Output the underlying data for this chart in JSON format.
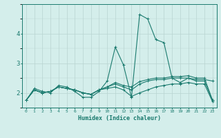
{
  "xlabel": "Humidex (Indice chaleur)",
  "bg_color": "#d4eeeb",
  "line_color": "#1a7a6e",
  "grid_color": "#b8d4d0",
  "x_data": [
    0,
    1,
    2,
    3,
    4,
    5,
    6,
    7,
    8,
    9,
    10,
    11,
    12,
    13,
    14,
    15,
    16,
    17,
    18,
    19,
    20,
    21,
    22,
    23
  ],
  "series": [
    [
      1.75,
      2.15,
      2.05,
      2.0,
      2.25,
      2.2,
      2.05,
      1.85,
      1.85,
      2.05,
      2.4,
      3.55,
      2.95,
      1.85,
      4.65,
      4.5,
      3.8,
      3.7,
      2.5,
      2.35,
      2.5,
      2.4,
      2.4,
      1.75
    ],
    [
      1.75,
      2.1,
      2.0,
      2.05,
      2.2,
      2.15,
      2.1,
      2.0,
      1.95,
      2.1,
      2.2,
      2.3,
      2.2,
      2.1,
      2.3,
      2.4,
      2.45,
      2.45,
      2.5,
      2.5,
      2.5,
      2.45,
      2.45,
      2.4
    ],
    [
      1.75,
      2.1,
      2.0,
      2.05,
      2.2,
      2.15,
      2.1,
      2.0,
      1.95,
      2.1,
      2.2,
      2.35,
      2.25,
      2.2,
      2.38,
      2.45,
      2.5,
      2.5,
      2.55,
      2.55,
      2.58,
      2.5,
      2.5,
      1.75
    ],
    [
      1.75,
      2.1,
      2.0,
      2.05,
      2.2,
      2.15,
      2.1,
      2.0,
      1.95,
      2.1,
      2.15,
      2.2,
      2.1,
      1.88,
      2.0,
      2.1,
      2.2,
      2.25,
      2.3,
      2.3,
      2.35,
      2.3,
      2.3,
      1.7
    ]
  ],
  "ylim": [
    1.5,
    5.0
  ],
  "xlim": [
    -0.5,
    23.5
  ],
  "yticks": [
    2,
    3,
    4
  ],
  "xticks": [
    0,
    1,
    2,
    3,
    4,
    5,
    6,
    7,
    8,
    9,
    10,
    11,
    12,
    13,
    14,
    15,
    16,
    17,
    18,
    19,
    20,
    21,
    22,
    23
  ],
  "marker": "+",
  "markersize": 3,
  "linewidth": 0.8
}
